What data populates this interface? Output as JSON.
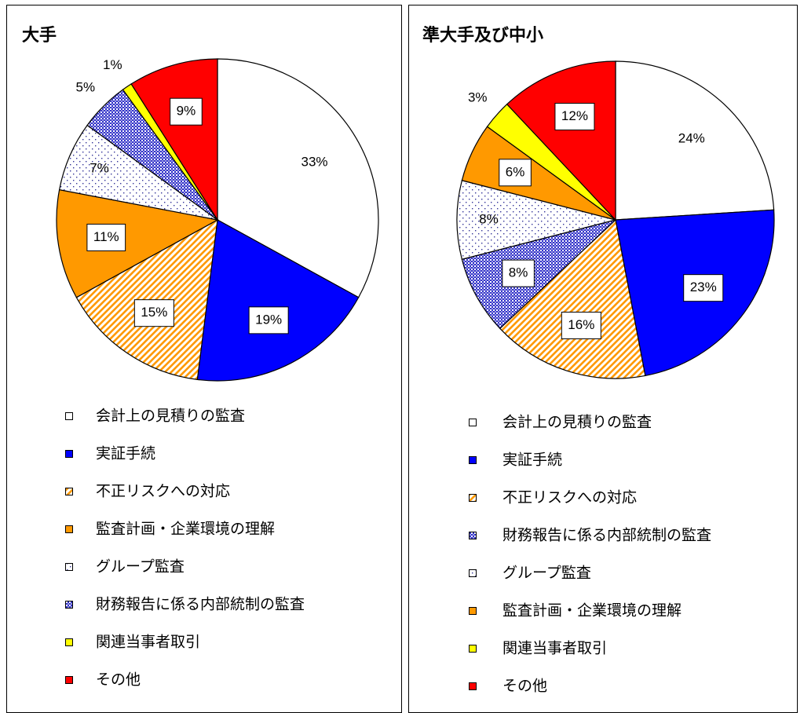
{
  "chart_data": [
    {
      "type": "pie",
      "title": "大手",
      "categories": [
        "会計上の見積りの監査",
        "実証手続",
        "不正リスクへの対応",
        "監査計画・企業環境の理解",
        "グループ監査",
        "財務報告に係る内部統制の監査",
        "関連当事者取引",
        "その他"
      ],
      "values": [
        33,
        19,
        15,
        11,
        7,
        5,
        1,
        9
      ],
      "value_labels": [
        "33%",
        "19%",
        "15%",
        "11%",
        "7%",
        "5%",
        "1%",
        "9%"
      ],
      "colors": [
        "#ffffff",
        "#0000ff",
        "#ff9900",
        "#ff9900",
        "#333399",
        "#3333cc",
        "#ffff00",
        "#ff0000"
      ],
      "patterns": [
        null,
        null,
        "stripes",
        null,
        "dots",
        "checks",
        null,
        null
      ]
    },
    {
      "type": "pie",
      "title": "準大手及び中小",
      "categories": [
        "会計上の見積りの監査",
        "実証手続",
        "不正リスクへの対応",
        "財務報告に係る内部統制の監査",
        "グループ監査",
        "監査計画・企業環境の理解",
        "関連当事者取引",
        "その他"
      ],
      "values": [
        24,
        23,
        16,
        8,
        8,
        6,
        3,
        12
      ],
      "value_labels": [
        "24%",
        "23%",
        "16%",
        "8%",
        "8%",
        "6%",
        "3%",
        "12%"
      ],
      "colors": [
        "#ffffff",
        "#0000ff",
        "#ff9900",
        "#3333cc",
        "#333399",
        "#ff9900",
        "#ffff00",
        "#ff0000"
      ],
      "patterns": [
        null,
        null,
        "stripes",
        "checks",
        "dots",
        null,
        null,
        null
      ]
    }
  ]
}
